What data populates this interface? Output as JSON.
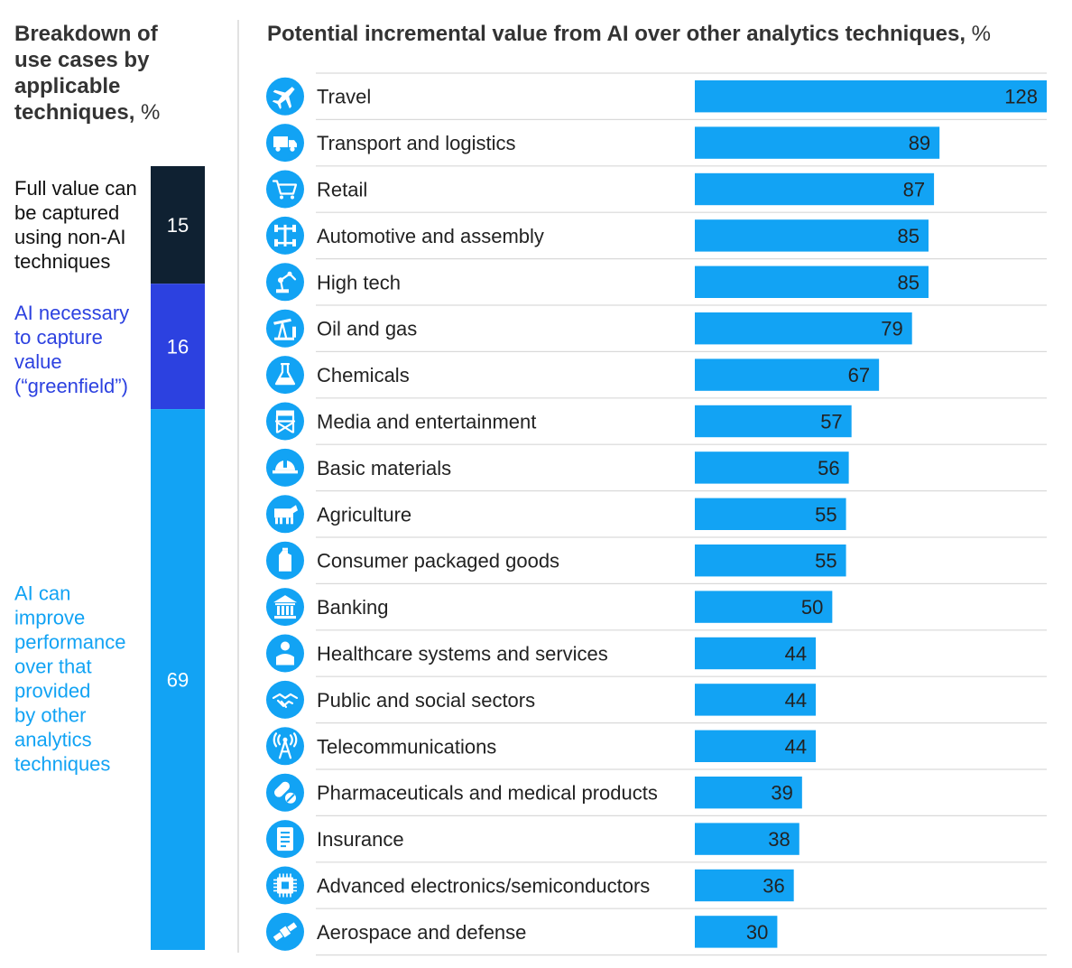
{
  "colors": {
    "dark": "#0f2132",
    "indigo": "#2c41e0",
    "accent": "#12a3f4",
    "rule": "#d9d9d9",
    "text": "#222222"
  },
  "chart_data": [
    {
      "type": "bar",
      "orientation": "vertical-stacked",
      "title": "Breakdown of use cases by applicable techniques,",
      "unit": "%",
      "series": [
        {
          "name": "Full value can be captured using non-AI techniques",
          "value": 15,
          "color": "#0f2132"
        },
        {
          "name": "AI necessary to capture value (“greenfield”)",
          "value": 16,
          "color": "#2c41e0"
        },
        {
          "name": "AI can improve performance over that provided by other analytics techniques",
          "value": 69,
          "color": "#12a3f4"
        }
      ],
      "total": 100,
      "legend_position": "left"
    },
    {
      "type": "bar",
      "orientation": "horizontal",
      "title": "Potential incremental value from AI over other analytics techniques,",
      "unit": "%",
      "xlim": [
        0,
        128
      ],
      "grid": false,
      "categories": [
        "Travel",
        "Transport and logistics",
        "Retail",
        "Automotive and assembly",
        "High tech",
        "Oil and gas",
        "Chemicals",
        "Media and entertainment",
        "Basic materials",
        "Agriculture",
        "Consumer packaged goods",
        "Banking",
        "Healthcare systems and services",
        "Public and social sectors",
        "Telecommunications",
        "Pharmaceuticals and medical products",
        "Insurance",
        "Advanced electronics/semiconductors",
        "Aerospace and defense"
      ],
      "values": [
        128,
        89,
        87,
        85,
        85,
        79,
        67,
        57,
        56,
        55,
        55,
        50,
        44,
        44,
        44,
        39,
        38,
        36,
        30
      ],
      "icons": [
        "airplane-icon",
        "truck-icon",
        "shopping-cart-icon",
        "chassis-icon",
        "robot-arm-icon",
        "oil-pump-icon",
        "flask-icon",
        "directors-chair-icon",
        "hard-hat-icon",
        "cow-icon",
        "detergent-bottle-icon",
        "bank-building-icon",
        "doctor-icon",
        "handshake-icon",
        "radio-tower-icon",
        "pills-icon",
        "document-icon",
        "microchip-icon",
        "satellite-icon"
      ],
      "bar_color": "#12a3f4"
    }
  ]
}
